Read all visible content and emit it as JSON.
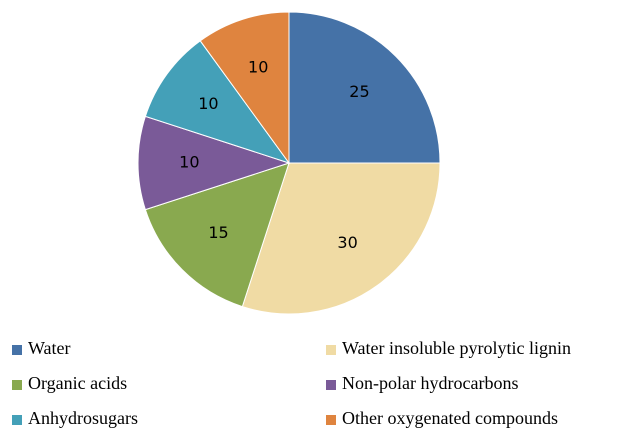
{
  "chart_data": {
    "type": "pie",
    "categories": [
      "Water",
      "Water insoluble pyrolytic lignin",
      "Organic acids",
      "Non-polar hydrocarbons",
      "Anhydrosugars",
      "Other oxygenated compounds"
    ],
    "values": [
      25,
      30,
      15,
      10,
      10,
      10
    ],
    "colors": [
      "#4572a7",
      "#f0dba4",
      "#89a94f",
      "#7a5a98",
      "#44a0b8",
      "#df843f"
    ],
    "legend": "bottom"
  }
}
